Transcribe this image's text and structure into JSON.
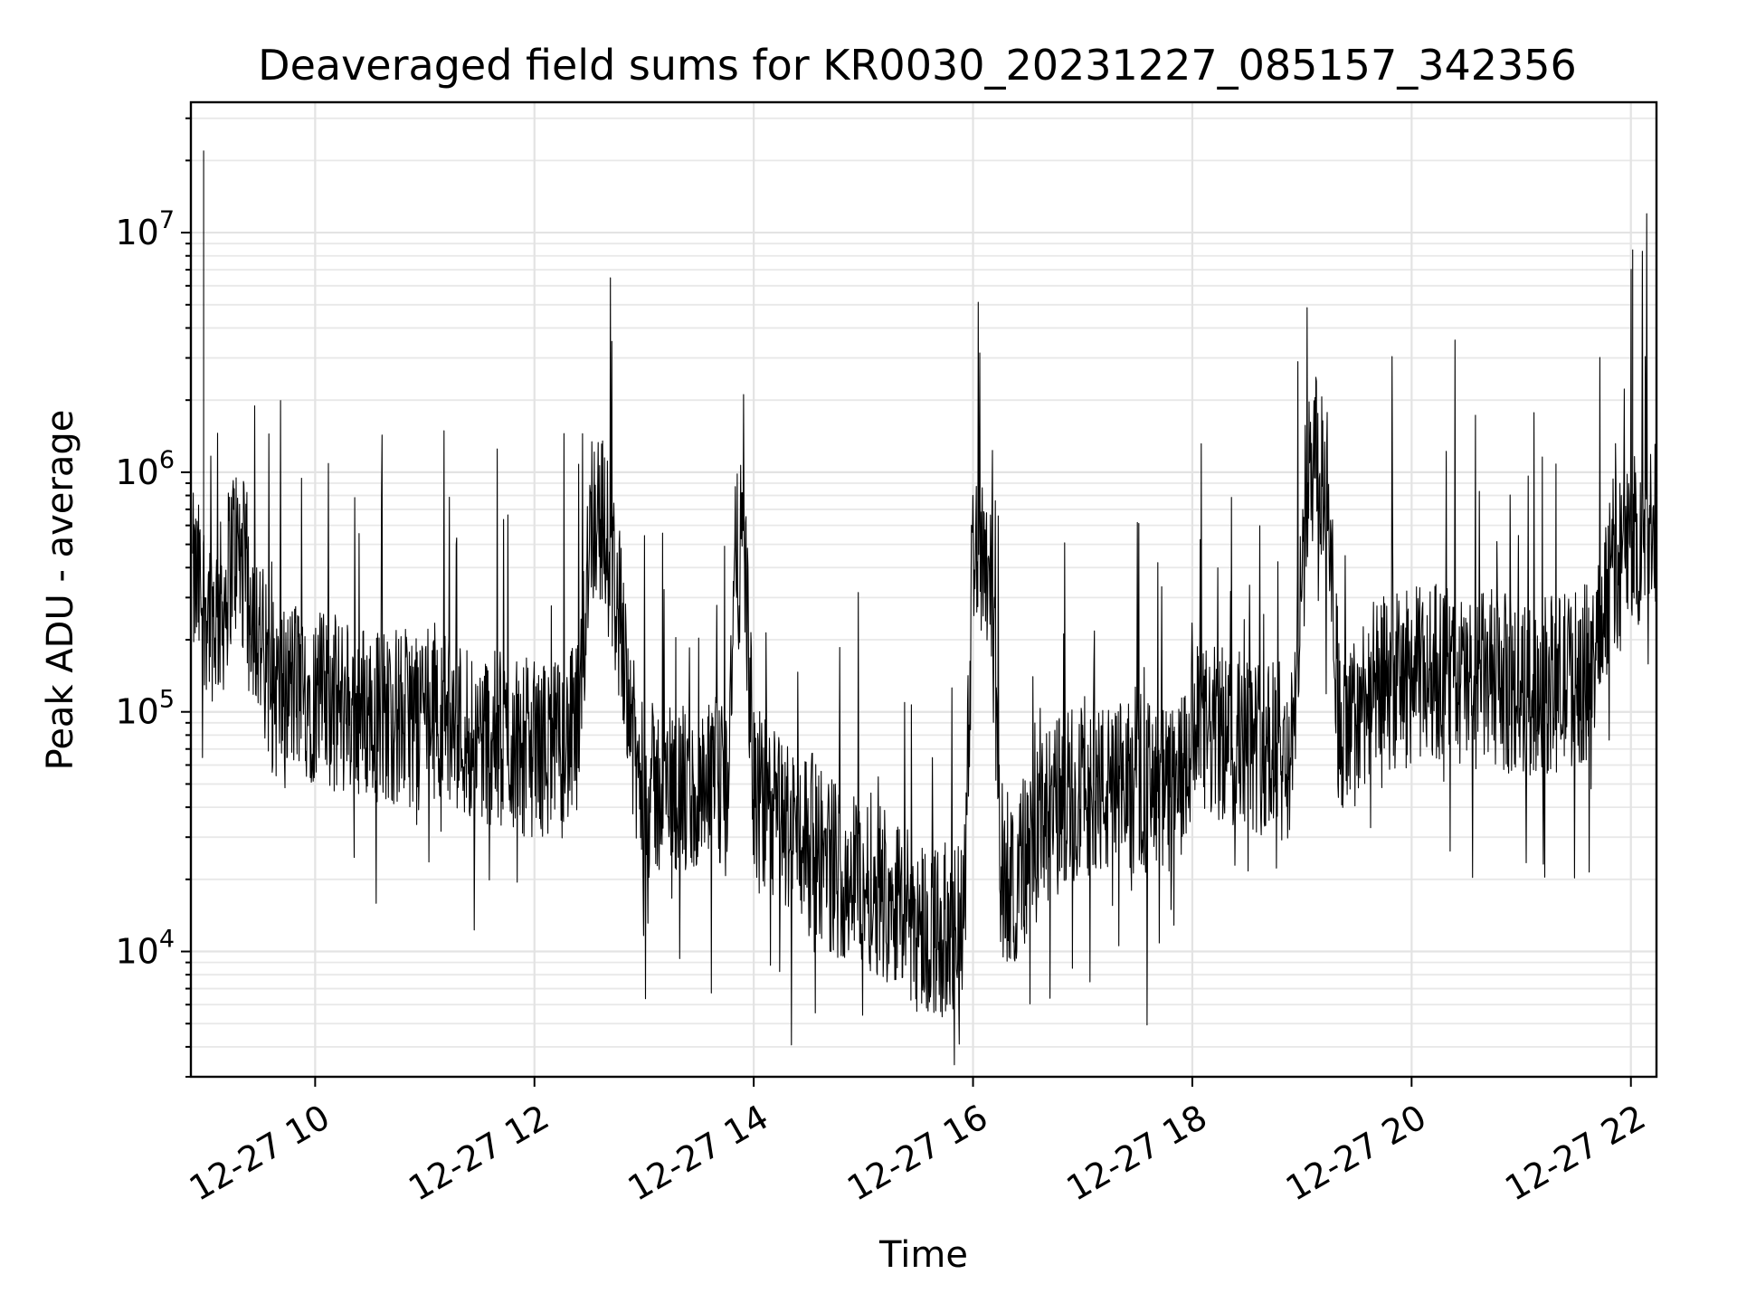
{
  "chart_data": {
    "type": "line",
    "title": "Deaveraged field sums for KR0030_20231227_085157_342356",
    "xlabel": "Time",
    "ylabel": "Peak ADU - average",
    "yscale": "log",
    "grid": true,
    "line_color": "#000000",
    "xlim": [
      "2023-12-27 08:52",
      "2023-12-27 22:14"
    ],
    "ylim": [
      3000,
      35000000
    ],
    "x_ticks": [
      {
        "value": "2023-12-27 10:00",
        "label": "12-27 10"
      },
      {
        "value": "2023-12-27 12:00",
        "label": "12-27 12"
      },
      {
        "value": "2023-12-27 14:00",
        "label": "12-27 14"
      },
      {
        "value": "2023-12-27 16:00",
        "label": "12-27 16"
      },
      {
        "value": "2023-12-27 18:00",
        "label": "12-27 18"
      },
      {
        "value": "2023-12-27 20:00",
        "label": "12-27 20"
      },
      {
        "value": "2023-12-27 22:00",
        "label": "12-27 22"
      }
    ],
    "y_ticks": [
      {
        "value": 10000,
        "base": "10",
        "exp": "4"
      },
      {
        "value": 100000,
        "base": "10",
        "exp": "5"
      },
      {
        "value": 1000000,
        "base": "10",
        "exp": "6"
      },
      {
        "value": 10000000,
        "base": "10",
        "exp": "7"
      }
    ],
    "series": [
      {
        "x": [
          "2023-12-27 08:53",
          "2023-12-27 08:59",
          "2023-12-27 09:05",
          "2023-12-27 09:10",
          "2023-12-27 09:15",
          "2023-12-27 09:20",
          "2023-12-27 09:25",
          "2023-12-27 09:30",
          "2023-12-27 09:35",
          "2023-12-27 09:40",
          "2023-12-27 09:50",
          "2023-12-27 10:00",
          "2023-12-27 10:15",
          "2023-12-27 10:30",
          "2023-12-27 10:45",
          "2023-12-27 10:52",
          "2023-12-27 11:00",
          "2023-12-27 11:15",
          "2023-12-27 11:30",
          "2023-12-27 11:45",
          "2023-12-27 12:00",
          "2023-12-27 12:15",
          "2023-12-27 12:25",
          "2023-12-27 12:30",
          "2023-12-27 12:35",
          "2023-12-27 12:40",
          "2023-12-27 12:45",
          "2023-12-27 12:50",
          "2023-12-27 12:55",
          "2023-12-27 13:00",
          "2023-12-27 13:15",
          "2023-12-27 13:30",
          "2023-12-27 13:40",
          "2023-12-27 13:45",
          "2023-12-27 13:50",
          "2023-12-27 13:55",
          "2023-12-27 14:00",
          "2023-12-27 14:15",
          "2023-12-27 14:30",
          "2023-12-27 14:45",
          "2023-12-27 15:00",
          "2023-12-27 15:15",
          "2023-12-27 15:30",
          "2023-12-27 15:45",
          "2023-12-27 15:50",
          "2023-12-27 15:55",
          "2023-12-27 16:00",
          "2023-12-27 16:05",
          "2023-12-27 16:10",
          "2023-12-27 16:15",
          "2023-12-27 16:20",
          "2023-12-27 16:30",
          "2023-12-27 16:45",
          "2023-12-27 17:00",
          "2023-12-27 17:15",
          "2023-12-27 17:30",
          "2023-12-27 17:45",
          "2023-12-27 17:55",
          "2023-12-27 18:00",
          "2023-12-27 18:15",
          "2023-12-27 18:30",
          "2023-12-27 18:45",
          "2023-12-27 18:55",
          "2023-12-27 19:00",
          "2023-12-27 19:05",
          "2023-12-27 19:10",
          "2023-12-27 19:15",
          "2023-12-27 19:20",
          "2023-12-27 19:25",
          "2023-12-27 19:30",
          "2023-12-27 19:35",
          "2023-12-27 19:45",
          "2023-12-27 20:00",
          "2023-12-27 20:15",
          "2023-12-27 20:30",
          "2023-12-27 20:45",
          "2023-12-27 21:00",
          "2023-12-27 21:15",
          "2023-12-27 21:30",
          "2023-12-27 21:40",
          "2023-12-27 21:45",
          "2023-12-27 21:50",
          "2023-12-27 21:55",
          "2023-12-27 22:00",
          "2023-12-27 22:05",
          "2023-12-27 22:10",
          "2023-12-27 22:14"
        ],
        "y": [
          350000,
          300000,
          250000,
          280000,
          500000,
          420000,
          300000,
          200000,
          130000,
          120000,
          130000,
          115000,
          105000,
          100000,
          95000,
          95000,
          110000,
          90000,
          80000,
          75000,
          70000,
          70000,
          85000,
          650000,
          700000,
          500000,
          300000,
          180000,
          60000,
          45000,
          50000,
          40000,
          50000,
          45000,
          400000,
          500000,
          45000,
          35000,
          30000,
          22000,
          20000,
          18000,
          13000,
          12000,
          12000,
          12000,
          550000,
          500000,
          400000,
          22000,
          20000,
          25000,
          40000,
          50000,
          45000,
          50000,
          45000,
          50000,
          80000,
          80000,
          75000,
          70000,
          65000,
          500000,
          1200000,
          1000000,
          700000,
          100000,
          70000,
          100000,
          120000,
          130000,
          140000,
          150000,
          130000,
          140000,
          120000,
          130000,
          140000,
          150000,
          300000,
          400000,
          450000,
          500000,
          550000,
          600000,
          700000
        ]
      }
    ]
  }
}
